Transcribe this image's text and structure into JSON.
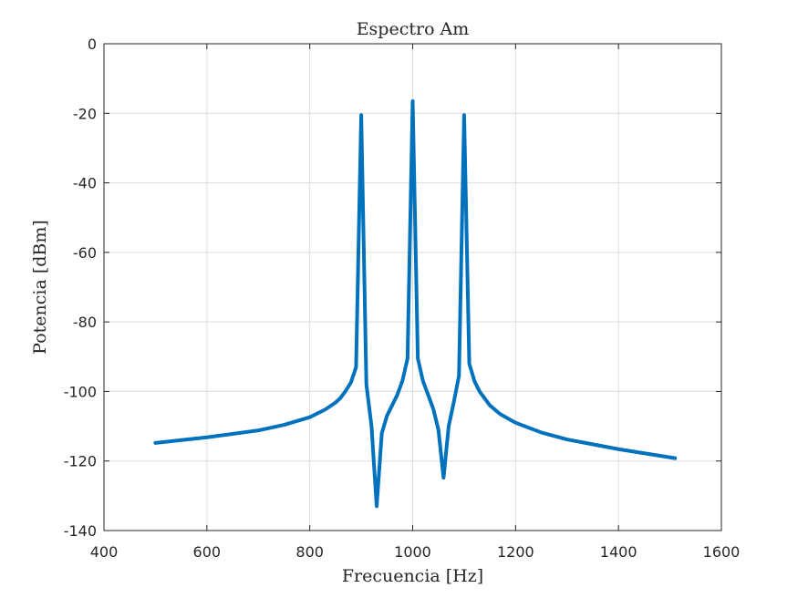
{
  "chart_data": {
    "type": "line",
    "title": "Espectro Am",
    "xlabel": "Frecuencia [Hz]",
    "ylabel": "Potencia [dBm]",
    "xlim": [
      400,
      1600
    ],
    "ylim": [
      -140,
      0
    ],
    "xticks": [
      400,
      600,
      800,
      1000,
      1200,
      1400,
      1600
    ],
    "yticks": [
      0,
      -20,
      -40,
      -60,
      -80,
      -100,
      -120,
      -140
    ],
    "grid": true,
    "line_color": "#0072BD",
    "series": [
      {
        "x": [
          500,
          600,
          700,
          750,
          800,
          830,
          850,
          860,
          870,
          880,
          890,
          900,
          910,
          920,
          930,
          940,
          950,
          960,
          970,
          980,
          990,
          1000,
          1010,
          1020,
          1030,
          1040,
          1050,
          1060,
          1070,
          1080,
          1090,
          1100,
          1110,
          1120,
          1130,
          1140,
          1150,
          1170,
          1200,
          1250,
          1300,
          1400,
          1510
        ],
        "y": [
          -114.8,
          -113.2,
          -111.2,
          -109.6,
          -107.4,
          -105.2,
          -103.2,
          -101.8,
          -99.8,
          -97.4,
          -93,
          -20.5,
          -98,
          -110,
          -133,
          -112,
          -107,
          -104,
          -101,
          -97,
          -90.5,
          -16.5,
          -90.5,
          -97,
          -101,
          -105,
          -111,
          -124.8,
          -110,
          -103,
          -95.5,
          -20.5,
          -92,
          -97,
          -100,
          -102,
          -104,
          -106.5,
          -109,
          -111.8,
          -113.8,
          -116.6,
          -119.2
        ]
      }
    ]
  }
}
